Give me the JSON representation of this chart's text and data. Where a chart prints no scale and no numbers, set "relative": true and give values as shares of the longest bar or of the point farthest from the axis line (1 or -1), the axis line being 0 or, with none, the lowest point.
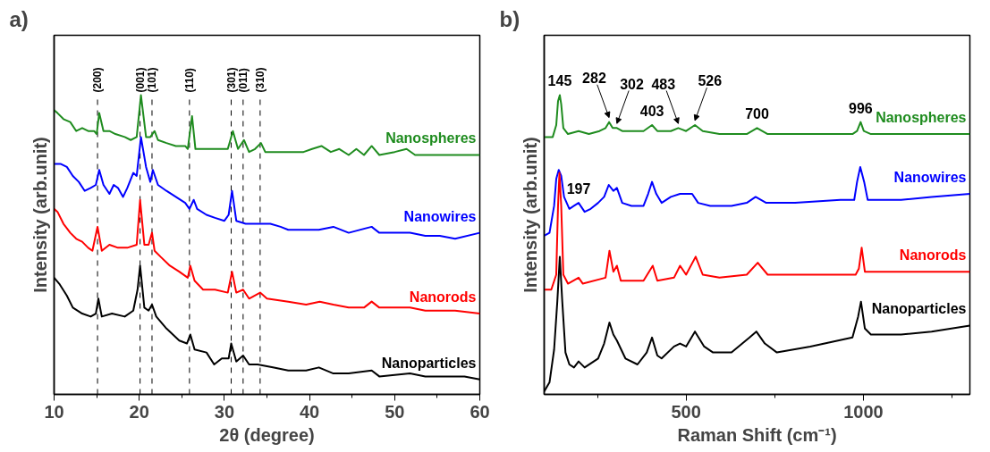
{
  "chart_data": [
    {
      "type": "line",
      "title": "a)",
      "xlabel": "2θ (degree)",
      "ylabel": "Intensity (arb.unit)",
      "relative": true,
      "legend": false,
      "tick_labels": "x",
      "xlim": [
        10,
        60
      ],
      "xticks": [
        10,
        20,
        30,
        40,
        50,
        60
      ],
      "ref_lines": [
        {
          "axis": "x",
          "value": 15.1,
          "color": "#000000",
          "line_style": "dashed"
        },
        {
          "axis": "x",
          "value": 20.1,
          "color": "#000000",
          "line_style": "dashed"
        },
        {
          "axis": "x",
          "value": 21.5,
          "color": "#000000",
          "line_style": "dashed"
        },
        {
          "axis": "x",
          "value": 25.9,
          "color": "#000000",
          "line_style": "dashed"
        },
        {
          "axis": "x",
          "value": 30.8,
          "color": "#000000",
          "line_style": "dashed"
        },
        {
          "axis": "x",
          "value": 32.2,
          "color": "#000000",
          "line_style": "dashed"
        },
        {
          "axis": "x",
          "value": 34.2,
          "color": "#000000",
          "line_style": "dashed"
        }
      ],
      "annotations": [
        {
          "text": "(200)",
          "x": 15.1,
          "y": 1.0
        },
        {
          "text": "(001)",
          "x": 20.1,
          "y": 1.0
        },
        {
          "text": "(101)",
          "x": 21.5,
          "y": 1.0
        },
        {
          "text": "(110)",
          "x": 25.9,
          "y": 1.0
        },
        {
          "text": "(301)",
          "x": 30.8,
          "y": 1.0
        },
        {
          "text": "(011)",
          "x": 32.2,
          "y": 1.0
        },
        {
          "text": "(310)",
          "x": 34.2,
          "y": 1.0
        }
      ],
      "series": [
        {
          "name": "Nanospheres",
          "color": "#1f8c1f",
          "x": [
            10.0,
            10.4,
            11.1,
            11.9,
            12.6,
            13.3,
            14.0,
            14.7,
            15.0,
            15.3,
            15.8,
            16.5,
            17.2,
            18.3,
            19.0,
            19.7,
            20.2,
            20.8,
            21.3,
            21.8,
            22.2,
            23.2,
            24.3,
            25.4,
            25.7,
            26.2,
            26.6,
            27.5,
            28.9,
            30.4,
            31.0,
            31.6,
            32.3,
            32.9,
            33.6,
            34.3,
            34.8,
            36.1,
            37.5,
            39.3,
            40.3,
            41.4,
            42.5,
            43.5,
            44.6,
            45.5,
            46.4,
            47.3,
            48.2,
            50.0,
            51.4,
            52.4,
            55.3,
            57.1,
            60.0
          ],
          "values": [
            0.95,
            0.94,
            0.92,
            0.91,
            0.88,
            0.89,
            0.88,
            0.88,
            0.87,
            0.94,
            0.88,
            0.88,
            0.87,
            0.86,
            0.85,
            0.86,
            1.0,
            0.86,
            0.86,
            0.88,
            0.85,
            0.84,
            0.83,
            0.83,
            0.82,
            0.93,
            0.82,
            0.82,
            0.82,
            0.82,
            0.88,
            0.82,
            0.85,
            0.81,
            0.82,
            0.84,
            0.81,
            0.81,
            0.81,
            0.81,
            0.82,
            0.83,
            0.81,
            0.82,
            0.8,
            0.82,
            0.8,
            0.83,
            0.8,
            0.81,
            0.82,
            0.8,
            0.8,
            0.8,
            0.8
          ]
        },
        {
          "name": "Nanowires",
          "color": "#0000ff",
          "x": [
            10.0,
            10.8,
            11.5,
            12.2,
            12.9,
            13.6,
            14.3,
            14.9,
            15.3,
            15.8,
            16.5,
            17.0,
            17.5,
            18.1,
            18.6,
            19.3,
            19.7,
            20.2,
            20.8,
            21.3,
            21.6,
            22.2,
            23.2,
            24.3,
            25.4,
            25.9,
            26.4,
            26.8,
            27.9,
            28.9,
            30.0,
            30.5,
            30.9,
            31.4,
            32.5,
            33.9,
            35.4,
            36.6,
            37.5,
            39.3,
            41.1,
            42.8,
            44.6,
            47.3,
            48.2,
            50.0,
            51.8,
            53.6,
            55.3,
            57.1,
            60.0
          ],
          "values": [
            0.77,
            0.77,
            0.76,
            0.73,
            0.71,
            0.68,
            0.69,
            0.7,
            0.75,
            0.7,
            0.67,
            0.7,
            0.69,
            0.66,
            0.69,
            0.74,
            0.73,
            0.86,
            0.76,
            0.71,
            0.75,
            0.7,
            0.68,
            0.66,
            0.64,
            0.62,
            0.65,
            0.62,
            0.6,
            0.59,
            0.58,
            0.6,
            0.68,
            0.58,
            0.57,
            0.57,
            0.57,
            0.56,
            0.55,
            0.55,
            0.55,
            0.56,
            0.54,
            0.56,
            0.54,
            0.54,
            0.54,
            0.53,
            0.53,
            0.52,
            0.54
          ]
        },
        {
          "name": "Nanorods",
          "color": "#ff0000",
          "x": [
            10.0,
            10.4,
            11.1,
            11.9,
            12.6,
            13.3,
            14.0,
            14.5,
            15.1,
            15.6,
            16.5,
            17.5,
            18.6,
            19.7,
            20.1,
            20.6,
            21.1,
            21.5,
            21.8,
            22.5,
            23.6,
            24.7,
            25.7,
            26.0,
            26.5,
            27.5,
            28.9,
            30.4,
            30.9,
            31.4,
            32.2,
            32.9,
            34.2,
            35.0,
            37.5,
            39.6,
            41.2,
            42.8,
            44.6,
            46.4,
            47.3,
            48.2,
            50.0,
            51.8,
            53.6,
            55.3,
            57.1,
            60.0
          ],
          "values": [
            0.62,
            0.61,
            0.57,
            0.54,
            0.52,
            0.51,
            0.49,
            0.48,
            0.56,
            0.48,
            0.5,
            0.49,
            0.49,
            0.5,
            0.65,
            0.5,
            0.5,
            0.54,
            0.48,
            0.46,
            0.43,
            0.41,
            0.39,
            0.43,
            0.38,
            0.35,
            0.35,
            0.34,
            0.41,
            0.34,
            0.35,
            0.32,
            0.34,
            0.32,
            0.31,
            0.3,
            0.31,
            0.3,
            0.29,
            0.29,
            0.31,
            0.29,
            0.29,
            0.29,
            0.28,
            0.28,
            0.28,
            0.27
          ]
        },
        {
          "name": "Nanoparticles",
          "color": "#000000",
          "x": [
            10.0,
            10.6,
            11.5,
            12.2,
            13.3,
            14.3,
            14.9,
            15.2,
            15.6,
            16.8,
            18.3,
            19.3,
            19.8,
            20.1,
            20.6,
            21.1,
            21.5,
            22.0,
            23.2,
            24.7,
            25.6,
            26.0,
            26.5,
            27.9,
            28.8,
            29.7,
            30.5,
            30.8,
            31.4,
            32.2,
            32.9,
            33.9,
            35.7,
            37.5,
            39.6,
            41.1,
            42.8,
            44.6,
            47.3,
            48.2,
            51.8,
            53.6,
            55.3,
            58.2,
            60.0
          ],
          "values": [
            0.39,
            0.37,
            0.33,
            0.29,
            0.27,
            0.26,
            0.27,
            0.32,
            0.26,
            0.27,
            0.26,
            0.28,
            0.35,
            0.43,
            0.29,
            0.28,
            0.3,
            0.26,
            0.22,
            0.18,
            0.17,
            0.2,
            0.15,
            0.14,
            0.1,
            0.12,
            0.12,
            0.17,
            0.11,
            0.13,
            0.1,
            0.1,
            0.09,
            0.08,
            0.08,
            0.09,
            0.07,
            0.07,
            0.08,
            0.06,
            0.07,
            0.06,
            0.06,
            0.06,
            0.05
          ]
        }
      ]
    },
    {
      "type": "line",
      "title": "b)",
      "xlabel": "Raman Shift (cm⁻¹)",
      "ylabel": "Intensity (arb.unit)",
      "relative": true,
      "legend": false,
      "tick_labels": "x",
      "xlim": [
        100,
        1300
      ],
      "xticks": [
        500,
        1000
      ],
      "annotations": [
        {
          "text": "145",
          "x": 144,
          "y": 1.0
        },
        {
          "text": "197",
          "x": 197,
          "y": 0.64
        },
        {
          "text": "282",
          "x": 283,
          "y": 0.91
        },
        {
          "text": "302",
          "x": 305,
          "y": 0.89
        },
        {
          "text": "403",
          "x": 404,
          "y": 0.9
        },
        {
          "text": "483",
          "x": 478,
          "y": 0.89
        },
        {
          "text": "526",
          "x": 525,
          "y": 0.9
        },
        {
          "text": "700",
          "x": 700,
          "y": 0.89
        },
        {
          "text": "996",
          "x": 992,
          "y": 0.91
        }
      ],
      "series": [
        {
          "name": "Nanospheres",
          "color": "#1f8c1f",
          "x": [
            100,
            124,
            134,
            139,
            144,
            148,
            154,
            167,
            197,
            226,
            256,
            273,
            283,
            293,
            305,
            320,
            380,
            404,
            419,
            457,
            478,
            500,
            525,
            547,
            594,
            671,
            700,
            730,
            850,
            969,
            982,
            992,
            1001,
            1021,
            1106,
            1192,
            1300
          ],
          "values": [
            0.86,
            0.86,
            0.9,
            0.98,
            1.0,
            0.97,
            0.89,
            0.87,
            0.88,
            0.87,
            0.88,
            0.89,
            0.91,
            0.89,
            0.89,
            0.88,
            0.88,
            0.9,
            0.88,
            0.88,
            0.89,
            0.88,
            0.9,
            0.88,
            0.87,
            0.87,
            0.89,
            0.87,
            0.87,
            0.87,
            0.88,
            0.91,
            0.88,
            0.87,
            0.87,
            0.87,
            0.87
          ]
        },
        {
          "name": "Nanowires",
          "color": "#0000ff",
          "x": [
            100,
            115,
            128,
            134,
            141,
            148,
            156,
            171,
            184,
            197,
            214,
            231,
            252,
            269,
            282,
            295,
            305,
            320,
            346,
            380,
            393,
            404,
            416,
            431,
            457,
            483,
            517,
            534,
            568,
            628,
            671,
            696,
            726,
            807,
            935,
            974,
            982,
            991,
            1002,
            1012,
            1106,
            1192,
            1300
          ],
          "values": [
            0.53,
            0.54,
            0.63,
            0.72,
            0.75,
            0.73,
            0.66,
            0.62,
            0.63,
            0.64,
            0.61,
            0.62,
            0.64,
            0.66,
            0.7,
            0.68,
            0.69,
            0.64,
            0.63,
            0.63,
            0.67,
            0.71,
            0.67,
            0.64,
            0.66,
            0.67,
            0.67,
            0.64,
            0.63,
            0.63,
            0.64,
            0.66,
            0.64,
            0.64,
            0.65,
            0.65,
            0.71,
            0.76,
            0.71,
            0.65,
            0.65,
            0.66,
            0.67
          ]
        },
        {
          "name": "Nanorods",
          "color": "#ff0000",
          "x": [
            100,
            120,
            134,
            139,
            143,
            148,
            154,
            167,
            197,
            209,
            273,
            284,
            295,
            305,
            316,
            380,
            406,
            419,
            466,
            483,
            500,
            527,
            547,
            594,
            671,
            702,
            730,
            850,
            978,
            987,
            995,
            1004,
            1106,
            1300
          ],
          "values": [
            0.35,
            0.35,
            0.4,
            0.63,
            0.74,
            0.63,
            0.4,
            0.37,
            0.39,
            0.37,
            0.39,
            0.48,
            0.41,
            0.43,
            0.38,
            0.38,
            0.43,
            0.38,
            0.39,
            0.43,
            0.4,
            0.46,
            0.4,
            0.39,
            0.4,
            0.44,
            0.4,
            0.4,
            0.4,
            0.42,
            0.49,
            0.41,
            0.41,
            0.41
          ]
        },
        {
          "name": "Nanoparticles",
          "color": "#000000",
          "x": [
            100,
            115,
            128,
            137,
            144,
            151,
            160,
            171,
            184,
            197,
            214,
            252,
            269,
            284,
            295,
            305,
            329,
            363,
            389,
            404,
            419,
            431,
            466,
            483,
            500,
            525,
            551,
            576,
            628,
            679,
            698,
            722,
            756,
            850,
            969,
            985,
            993,
            1004,
            1021,
            1106,
            1192,
            1300
          ],
          "values": [
            0.01,
            0.04,
            0.15,
            0.31,
            0.46,
            0.31,
            0.14,
            0.1,
            0.09,
            0.11,
            0.09,
            0.12,
            0.17,
            0.24,
            0.2,
            0.18,
            0.12,
            0.1,
            0.14,
            0.19,
            0.13,
            0.12,
            0.16,
            0.17,
            0.16,
            0.21,
            0.16,
            0.14,
            0.14,
            0.19,
            0.21,
            0.17,
            0.14,
            0.16,
            0.19,
            0.26,
            0.31,
            0.22,
            0.2,
            0.2,
            0.21,
            0.23
          ]
        }
      ]
    }
  ]
}
